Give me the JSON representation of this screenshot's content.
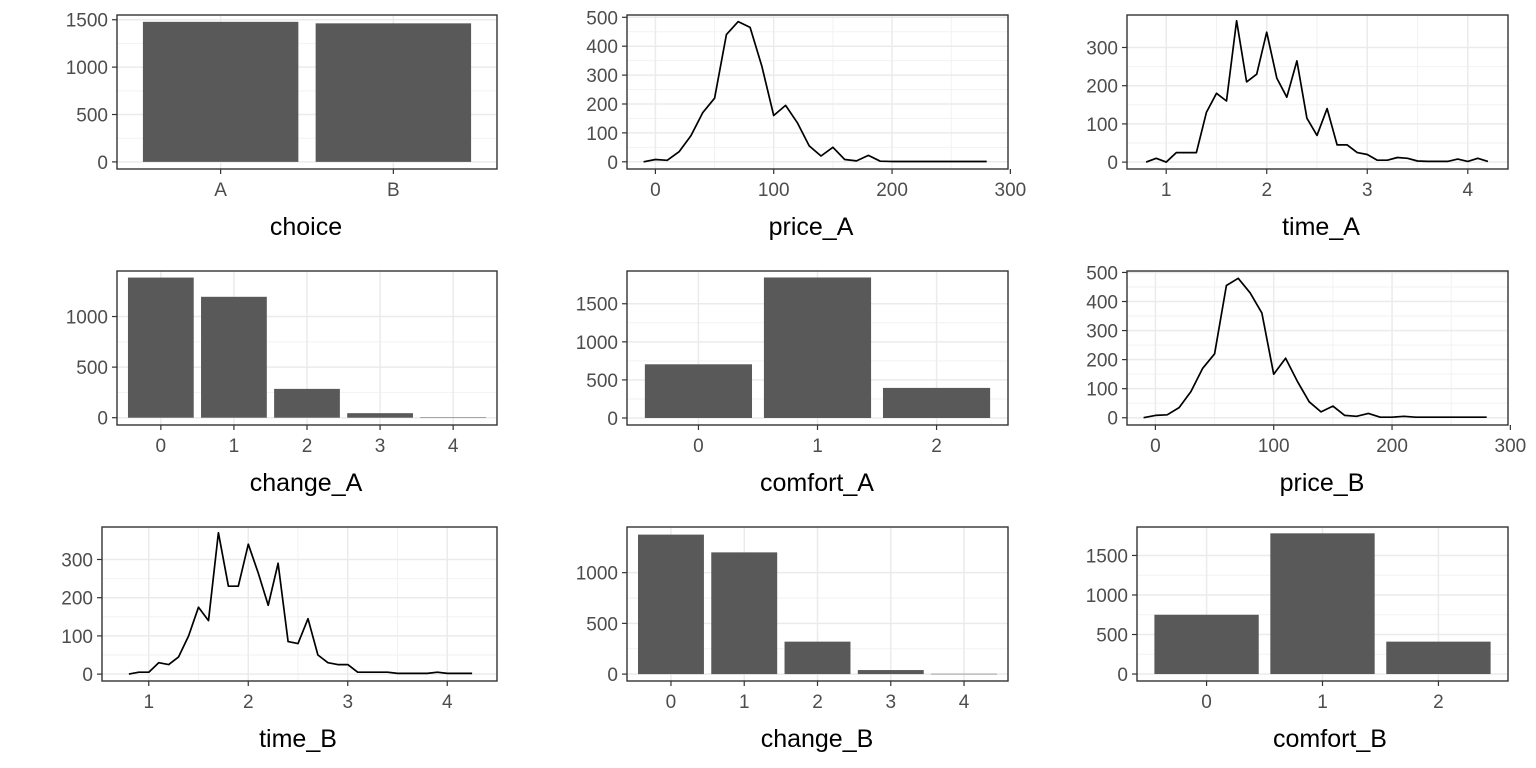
{
  "chart_data": [
    {
      "type": "bar",
      "xlabel": "choice",
      "categories": [
        "A",
        "B"
      ],
      "values": [
        1478,
        1462
      ],
      "ylim": [
        -75,
        1550
      ],
      "yticks": [
        0,
        500,
        1000,
        1500
      ],
      "grid": true
    },
    {
      "type": "line",
      "xlabel": "price_A",
      "x": [
        -10,
        0,
        10,
        20,
        30,
        40,
        50,
        60,
        70,
        80,
        90,
        100,
        110,
        120,
        130,
        140,
        150,
        160,
        170,
        180,
        190,
        200,
        210,
        220,
        230,
        240,
        250,
        260,
        270,
        280
      ],
      "y": [
        0,
        8,
        5,
        35,
        90,
        170,
        220,
        440,
        485,
        465,
        330,
        160,
        195,
        135,
        55,
        20,
        50,
        8,
        3,
        22,
        2,
        1,
        1,
        1,
        1,
        1,
        1,
        1,
        1,
        1
      ],
      "xlim": [
        -24,
        298
      ],
      "ylim": [
        -25,
        508
      ],
      "xticks": [
        0,
        100,
        200,
        300
      ],
      "yticks": [
        0,
        100,
        200,
        300,
        400,
        500
      ],
      "grid": true
    },
    {
      "type": "line",
      "xlabel": "time_A",
      "x": [
        0.8,
        0.9,
        1.0,
        1.1,
        1.2,
        1.3,
        1.4,
        1.5,
        1.6,
        1.7,
        1.8,
        1.9,
        2.0,
        2.1,
        2.2,
        2.3,
        2.4,
        2.5,
        2.6,
        2.7,
        2.8,
        2.9,
        3.0,
        3.1,
        3.2,
        3.3,
        3.4,
        3.5,
        3.6,
        3.7,
        3.8,
        3.9,
        4.0,
        4.1,
        4.2
      ],
      "y": [
        0,
        10,
        0,
        25,
        25,
        25,
        130,
        180,
        160,
        370,
        210,
        230,
        340,
        220,
        170,
        265,
        115,
        70,
        140,
        45,
        45,
        25,
        20,
        5,
        5,
        12,
        10,
        3,
        2,
        2,
        2,
        8,
        2,
        10,
        2
      ],
      "xlim": [
        0.61,
        4.4
      ],
      "ylim": [
        -18,
        385
      ],
      "xticks": [
        1,
        2,
        3,
        4
      ],
      "yticks": [
        0,
        100,
        200,
        300
      ],
      "grid": true
    },
    {
      "type": "bar",
      "xlabel": "change_A",
      "categories": [
        "0",
        "1",
        "2",
        "3",
        "4"
      ],
      "values": [
        1385,
        1195,
        285,
        45,
        2
      ],
      "ylim": [
        -72,
        1450
      ],
      "yticks": [
        0,
        500,
        1000
      ],
      "grid": true
    },
    {
      "type": "bar",
      "xlabel": "comfort_A",
      "categories": [
        "0",
        "1",
        "2"
      ],
      "values": [
        705,
        1845,
        395
      ],
      "ylim": [
        -92,
        1930
      ],
      "yticks": [
        0,
        500,
        1000,
        1500
      ],
      "grid": true
    },
    {
      "type": "line",
      "xlabel": "price_B",
      "x": [
        -10,
        0,
        10,
        20,
        30,
        40,
        50,
        60,
        70,
        80,
        90,
        100,
        110,
        120,
        130,
        140,
        150,
        160,
        170,
        180,
        190,
        200,
        210,
        220,
        230,
        240,
        250,
        260,
        270,
        280
      ],
      "y": [
        0,
        8,
        10,
        35,
        90,
        170,
        220,
        455,
        480,
        430,
        360,
        150,
        205,
        125,
        55,
        20,
        40,
        8,
        5,
        15,
        2,
        2,
        5,
        2,
        2,
        2,
        2,
        2,
        2,
        2
      ],
      "xlim": [
        -24,
        298
      ],
      "ylim": [
        -25,
        505
      ],
      "xticks": [
        0,
        100,
        200,
        300
      ],
      "yticks": [
        0,
        100,
        200,
        300,
        400,
        500
      ],
      "grid": true
    },
    {
      "type": "line",
      "xlabel": "time_B",
      "x": [
        0.8,
        0.9,
        1.0,
        1.1,
        1.2,
        1.3,
        1.4,
        1.5,
        1.6,
        1.7,
        1.8,
        1.9,
        2.0,
        2.1,
        2.2,
        2.3,
        2.4,
        2.5,
        2.6,
        2.7,
        2.8,
        2.9,
        3.0,
        3.1,
        3.2,
        3.3,
        3.4,
        3.5,
        3.6,
        3.7,
        3.8,
        3.9,
        4.0,
        4.1,
        4.2,
        4.25
      ],
      "y": [
        0,
        5,
        5,
        30,
        25,
        45,
        100,
        175,
        140,
        370,
        230,
        230,
        340,
        265,
        180,
        290,
        85,
        80,
        145,
        50,
        30,
        25,
        25,
        5,
        5,
        5,
        5,
        2,
        2,
        2,
        2,
        5,
        2,
        2,
        2,
        2
      ],
      "xlim": [
        0.53,
        4.5
      ],
      "ylim": [
        -18,
        385
      ],
      "xticks": [
        1,
        2,
        3,
        4
      ],
      "yticks": [
        0,
        100,
        200,
        300
      ],
      "grid": true
    },
    {
      "type": "bar",
      "xlabel": "change_B",
      "categories": [
        "0",
        "1",
        "2",
        "3",
        "4"
      ],
      "values": [
        1375,
        1200,
        320,
        40,
        3
      ],
      "ylim": [
        -68,
        1450
      ],
      "yticks": [
        0,
        500,
        1000
      ],
      "grid": true
    },
    {
      "type": "bar",
      "xlabel": "comfort_B",
      "categories": [
        "0",
        "1",
        "2"
      ],
      "values": [
        750,
        1780,
        410
      ],
      "ylim": [
        -88,
        1860
      ],
      "yticks": [
        0,
        500,
        1000,
        1500
      ],
      "grid": true
    }
  ]
}
